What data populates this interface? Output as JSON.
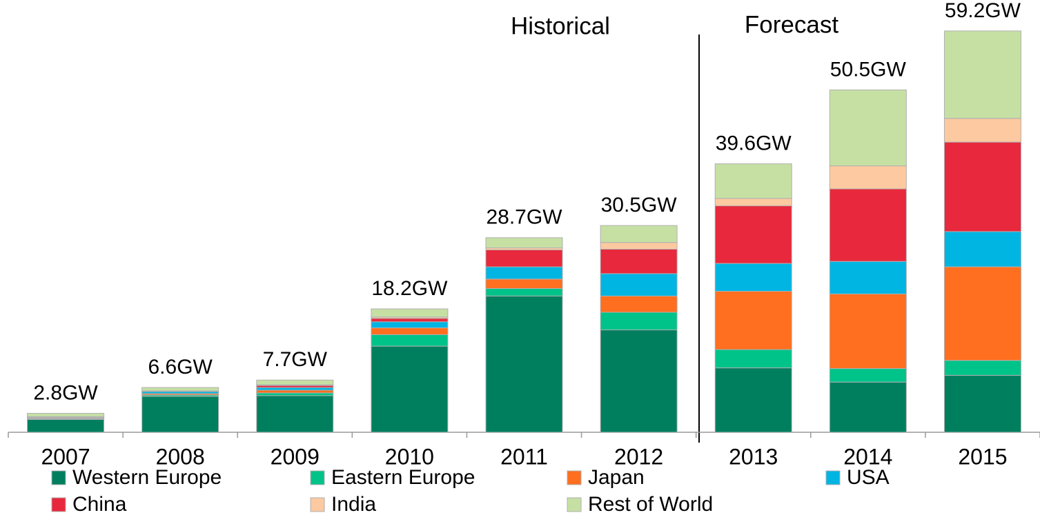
{
  "chart_data": {
    "type": "stacked_bar",
    "categories": [
      "2007",
      "2008",
      "2009",
      "2010",
      "2011",
      "2012",
      "2013",
      "2014",
      "2015"
    ],
    "series": [
      {
        "name": "Western Europe",
        "color": "#007f5f",
        "values": [
          1.9,
          5.3,
          5.4,
          12.7,
          20.1,
          15.1,
          9.5,
          7.4,
          8.4
        ]
      },
      {
        "name": "Eastern Europe",
        "color": "#00c389",
        "values": [
          0.1,
          0.2,
          0.4,
          1.7,
          1.1,
          2.6,
          2.7,
          2.0,
          2.2
        ]
      },
      {
        "name": "Japan",
        "color": "#ff6f1f",
        "values": [
          0.1,
          0.2,
          0.4,
          1.0,
          1.4,
          2.4,
          8.6,
          11.0,
          13.8
        ]
      },
      {
        "name": "USA",
        "color": "#00b5e2",
        "values": [
          0.1,
          0.3,
          0.4,
          0.9,
          1.8,
          3.3,
          4.1,
          4.8,
          5.2
        ]
      },
      {
        "name": "China",
        "color": "#e8283c",
        "values": [
          0.1,
          0.1,
          0.3,
          0.5,
          2.5,
          3.6,
          8.5,
          10.7,
          13.2
        ]
      },
      {
        "name": "India",
        "color": "#fcc9a0",
        "values": [
          0.0,
          0.0,
          0.1,
          0.2,
          0.3,
          1.0,
          1.1,
          3.4,
          3.5
        ]
      },
      {
        "name": "Rest of World",
        "color": "#c6e0a4",
        "values": [
          0.5,
          0.5,
          0.7,
          1.2,
          1.5,
          2.5,
          5.1,
          11.2,
          12.9
        ]
      }
    ],
    "total_labels": [
      "2.8GW",
      "6.6GW",
      "7.7GW",
      "18.2GW",
      "28.7GW",
      "30.5GW",
      "39.6GW",
      "50.5GW",
      "59.2GW"
    ],
    "annotations": [
      "Historical",
      "Forecast"
    ],
    "ylim": [
      0,
      60
    ]
  }
}
